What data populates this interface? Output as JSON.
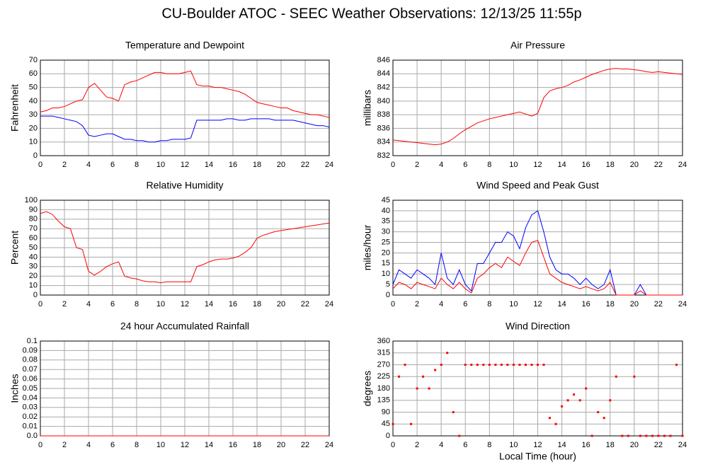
{
  "title": "CU-Boulder ATOC - SEEC Weather Observations: 12/13/25 11:55p",
  "chart_data": [
    {
      "type": "line",
      "title": "Temperature and Dewpoint",
      "ylabel": "Fahrenheit",
      "x": [
        0,
        0.5,
        1,
        1.5,
        2,
        2.5,
        3,
        3.5,
        4,
        4.5,
        5,
        5.5,
        6,
        6.5,
        7,
        7.5,
        8,
        8.5,
        9,
        9.5,
        10,
        10.5,
        11,
        11.5,
        12,
        12.5,
        13,
        13.5,
        14,
        14.5,
        15,
        15.5,
        16,
        16.5,
        17,
        17.5,
        18,
        18.5,
        19,
        19.5,
        20,
        20.5,
        21,
        21.5,
        22,
        22.5,
        23,
        23.5,
        24
      ],
      "series": [
        {
          "color": "#ff0000",
          "values": [
            32,
            33,
            35,
            35,
            36,
            38,
            40,
            41,
            50,
            53,
            48,
            43,
            42,
            40,
            52,
            54,
            55,
            57,
            59,
            61,
            61,
            60,
            60,
            60,
            61,
            62,
            52,
            51,
            51,
            50,
            50,
            49,
            48,
            47,
            45,
            42,
            39,
            38,
            37,
            36,
            35,
            35,
            33,
            32,
            31,
            30,
            30,
            29,
            28
          ]
        },
        {
          "color": "#0000ff",
          "values": [
            29,
            29,
            29,
            28,
            27,
            26,
            25,
            22,
            15,
            14,
            15,
            16,
            16,
            14,
            12,
            12,
            11,
            11,
            10,
            10,
            11,
            11,
            12,
            12,
            12,
            13,
            26,
            26,
            26,
            26,
            26,
            27,
            27,
            26,
            26,
            27,
            27,
            27,
            27,
            26,
            26,
            26,
            26,
            25,
            24,
            23,
            22,
            22,
            21
          ]
        }
      ],
      "xlim": [
        0,
        24
      ],
      "xticks": [
        0,
        2,
        4,
        6,
        8,
        10,
        12,
        14,
        16,
        18,
        20,
        22,
        24
      ],
      "ylim": [
        0,
        70
      ],
      "yticks": [
        0,
        10,
        20,
        30,
        40,
        50,
        60,
        70
      ],
      "grid": true
    },
    {
      "type": "line",
      "title": "Air Pressure",
      "ylabel": "millibars",
      "x": [
        0,
        0.5,
        1,
        1.5,
        2,
        2.5,
        3,
        3.5,
        4,
        4.5,
        5,
        5.5,
        6,
        6.5,
        7,
        7.5,
        8,
        8.5,
        9,
        9.5,
        10,
        10.5,
        11,
        11.5,
        12,
        12.5,
        13,
        13.5,
        14,
        14.5,
        15,
        15.5,
        16,
        16.5,
        17,
        17.5,
        18,
        18.5,
        19,
        19.5,
        20,
        20.5,
        21,
        21.5,
        22,
        22.5,
        23,
        23.5,
        24
      ],
      "series": [
        {
          "color": "#ff0000",
          "values": [
            834.3,
            834.2,
            834.1,
            834.0,
            833.9,
            833.8,
            833.7,
            833.6,
            833.7,
            834.0,
            834.5,
            835.2,
            835.8,
            836.3,
            836.8,
            837.1,
            837.4,
            837.6,
            837.8,
            838.0,
            838.2,
            838.4,
            838.1,
            837.8,
            838.2,
            840.5,
            841.5,
            841.8,
            842.0,
            842.3,
            842.8,
            843.1,
            843.5,
            843.9,
            844.2,
            844.5,
            844.7,
            844.8,
            844.7,
            844.7,
            844.6,
            844.5,
            844.3,
            844.2,
            844.3,
            844.2,
            844.1,
            844.0,
            843.9
          ]
        }
      ],
      "xlim": [
        0,
        24
      ],
      "xticks": [
        0,
        2,
        4,
        6,
        8,
        10,
        12,
        14,
        16,
        18,
        20,
        22,
        24
      ],
      "ylim": [
        832,
        846
      ],
      "yticks": [
        832,
        834,
        836,
        838,
        840,
        842,
        844,
        846
      ],
      "grid": true
    },
    {
      "type": "line",
      "title": "Relative Humidity",
      "ylabel": "Percent",
      "x": [
        0,
        0.5,
        1,
        1.5,
        2,
        2.5,
        3,
        3.5,
        4,
        4.5,
        5,
        5.5,
        6,
        6.5,
        7,
        7.5,
        8,
        8.5,
        9,
        9.5,
        10,
        10.5,
        11,
        11.5,
        12,
        12.5,
        13,
        13.5,
        14,
        14.5,
        15,
        15.5,
        16,
        16.5,
        17,
        17.5,
        18,
        18.5,
        19,
        19.5,
        20,
        20.5,
        21,
        21.5,
        22,
        22.5,
        23,
        23.5,
        24
      ],
      "series": [
        {
          "color": "#ff0000",
          "values": [
            86,
            88,
            85,
            78,
            72,
            70,
            50,
            48,
            25,
            21,
            25,
            30,
            33,
            35,
            20,
            18,
            17,
            15,
            14,
            14,
            13,
            14,
            14,
            14,
            14,
            14,
            30,
            32,
            35,
            37,
            38,
            38,
            39,
            41,
            45,
            50,
            60,
            63,
            65,
            67,
            68,
            69,
            70,
            71,
            72,
            73,
            74,
            75,
            76
          ]
        }
      ],
      "xlim": [
        0,
        24
      ],
      "xticks": [
        0,
        2,
        4,
        6,
        8,
        10,
        12,
        14,
        16,
        18,
        20,
        22,
        24
      ],
      "ylim": [
        0,
        100
      ],
      "yticks": [
        0,
        10,
        20,
        30,
        40,
        50,
        60,
        70,
        80,
        90,
        100
      ],
      "grid": true
    },
    {
      "type": "line",
      "title": "Wind Speed and Peak Gust",
      "ylabel": "miles/hour",
      "x": [
        0,
        0.5,
        1,
        1.5,
        2,
        2.5,
        3,
        3.5,
        4,
        4.5,
        5,
        5.5,
        6,
        6.5,
        7,
        7.5,
        8,
        8.5,
        9,
        9.5,
        10,
        10.5,
        11,
        11.5,
        12,
        12.5,
        13,
        13.5,
        14,
        14.5,
        15,
        15.5,
        16,
        16.5,
        17,
        17.5,
        18,
        18.5,
        19,
        19.5,
        20,
        20.5,
        21,
        21.5,
        22,
        22.5,
        23,
        23.5,
        24
      ],
      "series": [
        {
          "color": "#0000ff",
          "values": [
            5,
            12,
            10,
            8,
            12,
            10,
            8,
            5,
            20,
            8,
            5,
            12,
            5,
            2,
            15,
            15,
            20,
            25,
            25,
            30,
            28,
            22,
            32,
            38,
            40,
            30,
            18,
            12,
            10,
            10,
            8,
            5,
            8,
            5,
            3,
            5,
            12,
            0,
            0,
            0,
            0,
            5,
            0,
            0,
            0,
            0,
            0,
            0,
            0
          ]
        },
        {
          "color": "#ff0000",
          "values": [
            3,
            6,
            5,
            3,
            6,
            5,
            4,
            3,
            8,
            5,
            3,
            6,
            3,
            1,
            8,
            10,
            13,
            15,
            13,
            18,
            16,
            14,
            20,
            25,
            26,
            18,
            10,
            8,
            6,
            5,
            4,
            3,
            4,
            3,
            2,
            3,
            6,
            0,
            0,
            0,
            0,
            2,
            0,
            0,
            0,
            0,
            0,
            0,
            0
          ]
        }
      ],
      "xlim": [
        0,
        24
      ],
      "xticks": [
        0,
        2,
        4,
        6,
        8,
        10,
        12,
        14,
        16,
        18,
        20,
        22,
        24
      ],
      "ylim": [
        0,
        45
      ],
      "yticks": [
        0,
        5,
        10,
        15,
        20,
        25,
        30,
        35,
        40,
        45
      ],
      "grid": true
    },
    {
      "type": "line",
      "title": "24 hour Accumulated Rainfall",
      "ylabel": "Inches",
      "x": [
        0,
        0.5,
        1,
        1.5,
        2,
        2.5,
        3,
        3.5,
        4,
        4.5,
        5,
        5.5,
        6,
        6.5,
        7,
        7.5,
        8,
        8.5,
        9,
        9.5,
        10,
        10.5,
        11,
        11.5,
        12,
        12.5,
        13,
        13.5,
        14,
        14.5,
        15,
        15.5,
        16,
        16.5,
        17,
        17.5,
        18,
        18.5,
        19,
        19.5,
        20,
        20.5,
        21,
        21.5,
        22,
        22.5,
        23,
        23.5,
        24
      ],
      "series": [
        {
          "color": "#ff0000",
          "values": [
            0,
            0,
            0,
            0,
            0,
            0,
            0,
            0,
            0,
            0,
            0,
            0,
            0,
            0,
            0,
            0,
            0,
            0,
            0,
            0,
            0,
            0,
            0,
            0,
            0,
            0,
            0,
            0,
            0,
            0,
            0,
            0,
            0,
            0,
            0,
            0,
            0,
            0,
            0,
            0,
            0,
            0,
            0,
            0,
            0,
            0,
            0,
            0,
            0
          ]
        }
      ],
      "xlim": [
        0,
        24
      ],
      "xticks": [
        0,
        2,
        4,
        6,
        8,
        10,
        12,
        14,
        16,
        18,
        20,
        22,
        24
      ],
      "ylim": [
        0,
        0.1
      ],
      "yticks": [
        {
          "value": 0,
          "label": "0.0"
        },
        0.01,
        0.02,
        0.03,
        0.04,
        0.05,
        0.06,
        0.07,
        0.08,
        0.09,
        0.1
      ],
      "grid": true
    },
    {
      "type": "scatter",
      "title": "Wind Direction",
      "ylabel": "degrees",
      "xlabel": "Local Time (hour)",
      "x": [
        0,
        0.5,
        1,
        1.5,
        2,
        2.5,
        3,
        3.5,
        4,
        4.5,
        5,
        5.5,
        6,
        6.5,
        7,
        7.5,
        8,
        8.5,
        9,
        9.5,
        10,
        10.5,
        11,
        11.5,
        12,
        12.5,
        13,
        13.5,
        14,
        14.5,
        15,
        15.5,
        16,
        16.5,
        17,
        17.5,
        18,
        18.5,
        19,
        19.5,
        20,
        20.5,
        21,
        21.5,
        22,
        22.5,
        23,
        23.5,
        24
      ],
      "series": [
        {
          "color": "#ff0000",
          "values": [
            45,
            225,
            270,
            45,
            180,
            225,
            180,
            250,
            270,
            315,
            90,
            0,
            270,
            270,
            270,
            270,
            270,
            270,
            270,
            270,
            270,
            270,
            270,
            270,
            270,
            270,
            68,
            45,
            112,
            135,
            157,
            135,
            180,
            0,
            90,
            68,
            135,
            225,
            0,
            0,
            225,
            0,
            0,
            0,
            0,
            0,
            0,
            270,
            0
          ]
        }
      ],
      "xlim": [
        0,
        24
      ],
      "xticks": [
        0,
        2,
        4,
        6,
        8,
        10,
        12,
        14,
        16,
        18,
        20,
        22,
        24
      ],
      "ylim": [
        0,
        360
      ],
      "yticks": [
        0,
        45,
        90,
        135,
        180,
        225,
        270,
        315,
        360
      ],
      "grid": true
    }
  ]
}
